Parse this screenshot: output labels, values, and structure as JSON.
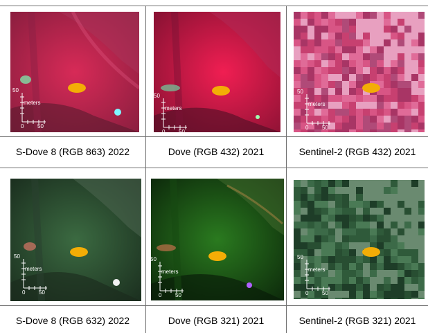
{
  "panels": [
    {
      "caption": "S-Dove 8 (RGB 863) 2022",
      "scale_unit": "meters",
      "scale_tick_max": "50",
      "scale_zero": "0",
      "scale_end": "50"
    },
    {
      "caption": "Dove (RGB 432) 2021",
      "scale_unit": "meters",
      "scale_tick_max": "50",
      "scale_zero": "0",
      "scale_end": "50"
    },
    {
      "caption": "Sentinel-2 (RGB 432) 2021",
      "scale_unit": "meters",
      "scale_tick_max": "50",
      "scale_zero": "0",
      "scale_end": "50"
    },
    {
      "caption": "S-Dove 8 (RGB 632) 2022",
      "scale_unit": "meters",
      "scale_tick_max": "50",
      "scale_zero": "0",
      "scale_end": "50"
    },
    {
      "caption": "Dove (RGB 321) 2021",
      "scale_unit": "meters",
      "scale_tick_max": "50",
      "scale_zero": "0",
      "scale_end": "50"
    },
    {
      "caption": "Sentinel-2 (RGB 321) 2021",
      "scale_unit": "meters",
      "scale_tick_max": "50",
      "scale_zero": "0",
      "scale_end": "50"
    }
  ],
  "colors": {
    "marker": "#f3ad06",
    "false_color_base": "#c8204a",
    "true_color_base": "#2f5a32",
    "grid_line": "#6f6f6f"
  }
}
